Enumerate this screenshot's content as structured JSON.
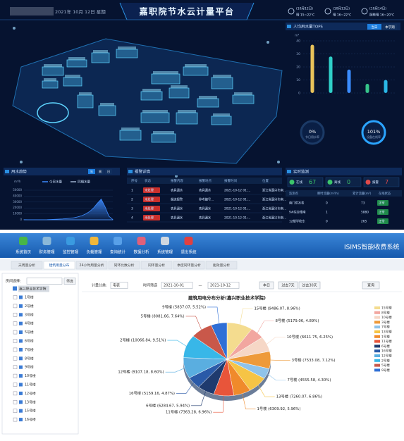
{
  "dashboard": {
    "date": "2021年 10月 12日 星期",
    "title": "嘉职院节水云计量平台",
    "weather": [
      {
        "date": "(10月12日)",
        "desc": "晴 15~22℃"
      },
      {
        "date": "(10月13日)",
        "desc": "晴 16~22℃"
      },
      {
        "date": "(10月14日)",
        "desc": "阴转晴 16~20℃"
      }
    ],
    "top5": {
      "type": "bar",
      "title": "人均用水量TOP5",
      "tabs": [
        "当日",
        "本学期"
      ],
      "unit": "m³",
      "categories": [
        null,
        null,
        null,
        null,
        null
      ],
      "values": [
        37,
        28,
        18,
        7,
        10
      ],
      "colors": [
        "#e8c35a",
        "#2fd0c9",
        "#3b8cff",
        "#36c48a",
        "#2ab7e6"
      ],
      "ylim": [
        0,
        40
      ],
      "yticks": [
        0,
        10,
        20,
        30,
        40
      ]
    },
    "gauges": [
      {
        "value": 0,
        "value_label": "0%",
        "label": "节日用水率"
      },
      {
        "value": 101,
        "value_label": "101%",
        "label": "设备在线率"
      }
    ],
    "trend": {
      "type": "area",
      "title": "用水趋势",
      "tabs": [
        "年",
        "周",
        "日"
      ],
      "unit": "m³/h",
      "series": [
        {
          "name": "今日水量",
          "color": "#3d8bff",
          "values": [
            200,
            150,
            100,
            100,
            100,
            150,
            300,
            600,
            900,
            1200,
            1500,
            2000,
            2600,
            3500,
            5000,
            7000,
            10000,
            14000,
            20000,
            28000,
            35000,
            22000,
            6000,
            500
          ]
        },
        {
          "name": "同期水量",
          "color": "#9fb3d1",
          "values": [
            0,
            0,
            0,
            0,
            0,
            0,
            0,
            0,
            0,
            0,
            0,
            0,
            0,
            0,
            0,
            0,
            0,
            0,
            0,
            0,
            0,
            0,
            0,
            0
          ]
        }
      ],
      "ylim": [
        0,
        50000
      ],
      "yticks": [
        0,
        10000,
        20000,
        30000,
        40000,
        50000
      ]
    },
    "alarms": {
      "title": "报警详情",
      "columns": [
        "序号",
        "状态",
        "报警内容",
        "报警地点",
        "报警时间",
        "位置"
      ],
      "rows": [
        [
          "1",
          "未处理",
          "表具漏水",
          "表具漏水",
          "2021-10-12 01:...",
          "浙江省嘉兴市南..."
        ],
        [
          "2",
          "未处理",
          "偏流报警",
          "参考编号...",
          "2021-10-12 01:...",
          "浙江省嘉兴市南..."
        ],
        [
          "3",
          "未处理",
          "表具漏水",
          "表具漏水",
          "2021-10-12 01:...",
          "浙江省嘉兴市南..."
        ],
        [
          "4",
          "未处理",
          "表具漏水",
          "表具漏水",
          "2021-10-12 01:...",
          "浙江省嘉兴市南..."
        ]
      ]
    },
    "monitor": {
      "title": "实时监测",
      "counts": [
        {
          "label": "在线",
          "value": 67
        },
        {
          "label": "离线",
          "value": 0
        },
        {
          "label": "报警",
          "value": 7
        }
      ],
      "columns": [
        "监测点",
        "瞬时流量(m³/h)",
        "累计流量(m³)",
        "在线状态"
      ],
      "rows": [
        [
          "南门供水表",
          "0",
          "73",
          "正常"
        ],
        [
          "9#综合楼南",
          "1",
          "5880",
          "正常"
        ],
        [
          "12楼学校东",
          "0",
          "265",
          "正常"
        ]
      ]
    }
  },
  "app": {
    "brand": "ISIMS智能收费系统",
    "menu": [
      "系统首页",
      "财务管理",
      "监控管理",
      "负载管理",
      "查询统计",
      "数据分析",
      "系统管理",
      "退出系统"
    ],
    "tabs": [
      "天周量分析",
      "建筑用量分布",
      "24小时用量分析",
      "同环比数分析",
      "同环量分析",
      "季度同环量分析",
      "能效量分析"
    ],
    "tree": {
      "search_label": "房间选择:",
      "button": "筛选",
      "root": "嘉兴职业技术学院",
      "items": [
        "1号楼",
        "2号楼",
        "3号楼",
        "4号楼",
        "5号楼",
        "6号楼",
        "7号楼",
        "8号楼",
        "9号楼",
        "10号楼",
        "11号楼",
        "12号楼",
        "13号楼",
        "15号楼",
        "16号楼"
      ]
    },
    "filter": {
      "category_label": "计量分类:",
      "category": "电表",
      "time_label": "时间筛选",
      "start": "2021-10-01",
      "dash": "—",
      "end": "2021-10-12",
      "buttons": [
        "本日",
        "过去7天",
        "过去30天"
      ],
      "query": "查询"
    },
    "chart_data": {
      "type": "pie",
      "title": "建筑用电分布分析(嘉兴职业技术学院)",
      "categories": [
        "15号楼",
        "8号楼",
        "10号楼",
        "3号楼",
        "7号楼",
        "13号楼",
        "1号楼",
        "11号楼",
        "6号楼",
        "16号楼",
        "12号楼",
        "2号楼",
        "5号楼",
        "9号楼"
      ],
      "values": [
        9486.07,
        5179.06,
        6611.75,
        7533.08,
        4555.58,
        7260.07,
        6309.92,
        7363.28,
        6284.67,
        5159.16,
        9107.18,
        10066.84,
        8081.66,
        5837.07
      ],
      "value_labels": [
        "15号楼 (9486.07, 8.96%)",
        "8号楼 (5179.06, 4.89%)",
        "10号楼 (6611.75, 6.25%)",
        "3号楼 (7533.08, 7.12%)",
        "7号楼 (4555.58, 4.30%)",
        "13号楼 (7260.07, 6.86%)",
        "1号楼 (6309.92, 5.96%)",
        "11号楼 (7363.28, 6.96%)",
        "6号楼 (6284.67, 5.94%)",
        "16号楼 (5159.16, 4.87%)",
        "12号楼 (9107.18, 8.60%)",
        "2号楼 (10066.84, 9.51%)",
        "5号楼 (8081.66, 7.64%)",
        "9号楼 (5837.07, 5.52%)"
      ],
      "colors": [
        "#f4dc8f",
        "#f2a6a0",
        "#f6d7c6",
        "#ee9a3a",
        "#8fc3ea",
        "#f6c445",
        "#f08a2b",
        "#e8553a",
        "#1f3a6e",
        "#2a5aa8",
        "#5aaee0",
        "#38b7e8",
        "#c9584a",
        "#2f6fd6"
      ]
    }
  }
}
